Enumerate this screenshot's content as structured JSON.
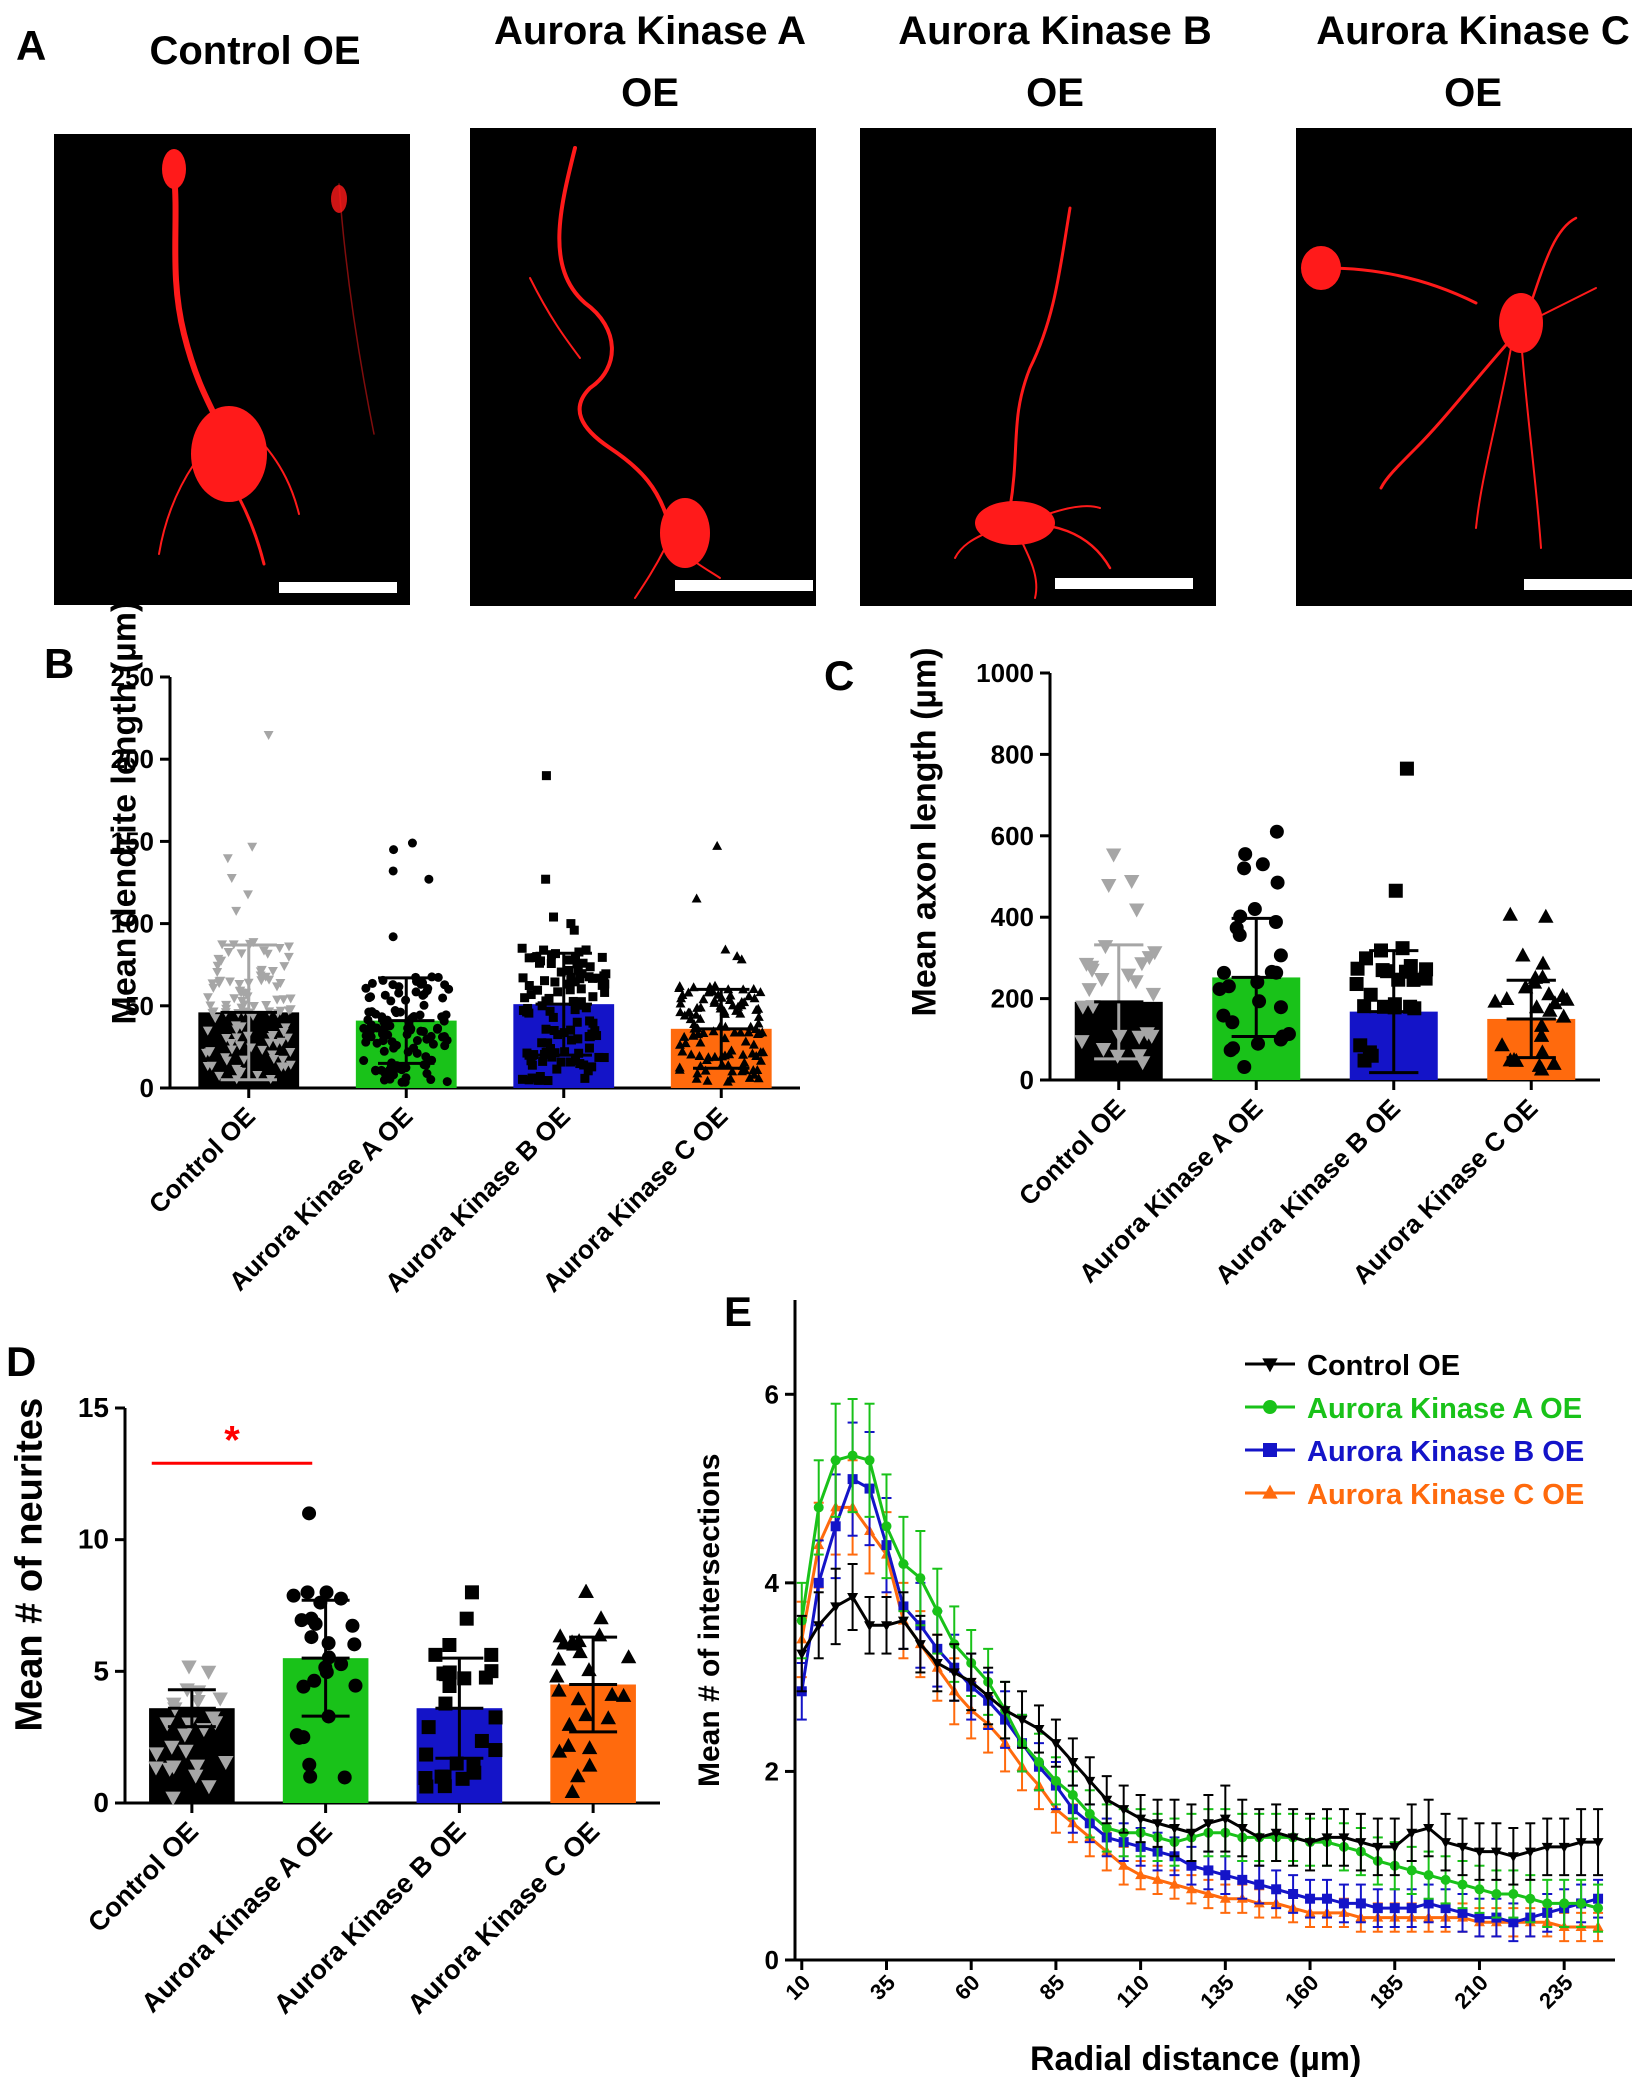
{
  "colors": {
    "control": "#000000",
    "control_points": "#a6a6a6",
    "aurora_a": "#19c219",
    "aurora_b": "#1414c8",
    "aurora_c": "#ff6a0d",
    "neuron": "#ff1a1a",
    "significance": "#ff0000"
  },
  "panel_a": {
    "letter": "A",
    "images": [
      {
        "title_line1": "Control OE",
        "title_line2": ""
      },
      {
        "title_line1": "Aurora Kinase A",
        "title_line2": "OE"
      },
      {
        "title_line1": "Aurora Kinase B",
        "title_line2": "OE"
      },
      {
        "title_line1": "Aurora Kinase C",
        "title_line2": "OE"
      }
    ]
  },
  "chart_data": [
    {
      "panel": "B",
      "type": "bar",
      "ylabel": "Mean dendrite length (µm)",
      "ylim": [
        0,
        250
      ],
      "yticks": [
        "0",
        "50",
        "100",
        "150",
        "200",
        "250"
      ],
      "categories": [
        "Control OE",
        "Aurora Kinase A OE",
        "Aurora Kinase B OE",
        "Aurora Kinase C OE"
      ],
      "values": [
        46,
        41,
        51,
        36
      ],
      "errors": [
        41,
        26,
        31,
        24
      ],
      "markers": [
        "triangle-down",
        "circle",
        "square",
        "triangle-up"
      ],
      "outliers": [
        [
          215,
          147,
          140,
          128,
          118,
          108
        ],
        [
          149,
          145,
          132,
          127,
          92
        ],
        [
          190,
          127,
          104,
          100,
          96
        ],
        [
          147,
          115,
          84,
          80,
          78
        ]
      ]
    },
    {
      "panel": "C",
      "type": "bar",
      "ylabel": "Mean axon length (µm)",
      "ylim": [
        0,
        1000
      ],
      "yticks": [
        "0",
        "200",
        "400",
        "600",
        "800",
        "1000"
      ],
      "categories": [
        "Control OE",
        "Aurora Kinase A OE",
        "Aurora Kinase B OE",
        "Aurora Kinase C OE"
      ],
      "values": [
        192,
        252,
        168,
        150
      ],
      "errors": [
        140,
        145,
        150,
        95
      ],
      "markers": [
        "triangle-down",
        "circle",
        "square",
        "triangle-up"
      ],
      "outliers": [
        [
          555,
          490,
          480,
          420,
          330
        ],
        [
          610,
          555,
          530,
          520,
          485,
          420
        ],
        [
          765,
          465,
          280,
          270
        ],
        [
          405,
          400,
          305,
          285,
          250
        ]
      ]
    },
    {
      "panel": "D",
      "type": "bar",
      "ylabel": "Mean # of neurites",
      "ylim": [
        0,
        15
      ],
      "yticks": [
        "0",
        "5",
        "10",
        "15"
      ],
      "categories": [
        "Control OE",
        "Aurora Kinase A OE",
        "Aurora Kinase B OE",
        "Aurora Kinase C OE"
      ],
      "values": [
        3.6,
        5.5,
        3.6,
        4.5
      ],
      "errors": [
        0.7,
        2.2,
        1.9,
        1.8
      ],
      "markers": [
        "triangle-down",
        "circle",
        "square",
        "triangle-up"
      ],
      "outliers": [
        [
          5.2,
          5.0,
          2.0
        ],
        [
          11.0,
          8.0,
          8.0,
          7.0,
          1.0
        ],
        [
          8.0,
          7.0,
          6.0,
          1.0,
          1.0
        ],
        [
          8.0,
          8.0,
          7.0,
          6.0,
          1.0
        ]
      ],
      "significance": {
        "from": 0,
        "to": 1,
        "label": "*",
        "y": 12.9
      }
    },
    {
      "panel": "E",
      "type": "line",
      "xlabel": "Radial distance (µm)",
      "ylabel": "Mean # of intersections",
      "xlim": [
        8,
        250
      ],
      "ylim": [
        0,
        7
      ],
      "xticks": [
        "10",
        "35",
        "60",
        "85",
        "110",
        "135",
        "160",
        "185",
        "210",
        "235"
      ],
      "yticks": [
        "0",
        "2",
        "4",
        "6"
      ],
      "x_start": 10,
      "x_step": 5,
      "series": [
        {
          "name": "Control OE",
          "marker": "triangle-down",
          "values": [
            3.25,
            3.55,
            3.75,
            3.85,
            3.55,
            3.55,
            3.6,
            3.35,
            3.15,
            3.05,
            2.95,
            2.8,
            2.65,
            2.55,
            2.45,
            2.3,
            2.1,
            1.9,
            1.7,
            1.6,
            1.5,
            1.45,
            1.4,
            1.35,
            1.45,
            1.5,
            1.4,
            1.3,
            1.35,
            1.3,
            1.25,
            1.3,
            1.3,
            1.25,
            1.2,
            1.2,
            1.35,
            1.4,
            1.25,
            1.2,
            1.15,
            1.15,
            1.1,
            1.15,
            1.2,
            1.2,
            1.25,
            1.25
          ],
          "errors": [
            0.4,
            0.35,
            0.4,
            0.35,
            0.3,
            0.3,
            0.3,
            0.3,
            0.3,
            0.3,
            0.3,
            0.3,
            0.3,
            0.3,
            0.25,
            0.25,
            0.25,
            0.25,
            0.25,
            0.25,
            0.25,
            0.25,
            0.3,
            0.3,
            0.3,
            0.35,
            0.3,
            0.3,
            0.3,
            0.3,
            0.3,
            0.3,
            0.3,
            0.3,
            0.3,
            0.3,
            0.3,
            0.3,
            0.3,
            0.3,
            0.3,
            0.3,
            0.3,
            0.3,
            0.3,
            0.3,
            0.35,
            0.35
          ]
        },
        {
          "name": "Aurora Kinase A OE",
          "marker": "circle",
          "values": [
            3.6,
            4.8,
            5.3,
            5.35,
            5.3,
            4.6,
            4.2,
            4.05,
            3.7,
            3.35,
            3.15,
            2.95,
            2.65,
            2.3,
            2.1,
            1.9,
            1.75,
            1.55,
            1.4,
            1.35,
            1.35,
            1.3,
            1.25,
            1.3,
            1.35,
            1.35,
            1.3,
            1.3,
            1.3,
            1.3,
            1.25,
            1.25,
            1.2,
            1.15,
            1.05,
            1.0,
            0.95,
            0.9,
            0.85,
            0.8,
            0.75,
            0.7,
            0.7,
            0.65,
            0.6,
            0.6,
            0.6,
            0.55
          ],
          "errors": [
            0.4,
            0.5,
            0.6,
            0.6,
            0.6,
            0.55,
            0.5,
            0.5,
            0.45,
            0.4,
            0.35,
            0.35,
            0.3,
            0.3,
            0.3,
            0.25,
            0.25,
            0.25,
            0.25,
            0.25,
            0.25,
            0.25,
            0.25,
            0.25,
            0.25,
            0.25,
            0.25,
            0.25,
            0.25,
            0.25,
            0.25,
            0.25,
            0.25,
            0.25,
            0.25,
            0.25,
            0.25,
            0.25,
            0.25,
            0.25,
            0.25,
            0.25,
            0.25,
            0.25,
            0.25,
            0.25,
            0.25,
            0.25
          ]
        },
        {
          "name": "Aurora Kinase B OE",
          "marker": "square",
          "values": [
            2.85,
            4.0,
            4.6,
            5.1,
            5.0,
            4.4,
            3.75,
            3.55,
            3.3,
            3.1,
            2.9,
            2.75,
            2.55,
            2.3,
            2.05,
            1.85,
            1.6,
            1.45,
            1.3,
            1.25,
            1.2,
            1.15,
            1.1,
            1.0,
            0.95,
            0.9,
            0.85,
            0.8,
            0.75,
            0.7,
            0.65,
            0.65,
            0.6,
            0.6,
            0.55,
            0.55,
            0.55,
            0.6,
            0.55,
            0.5,
            0.45,
            0.45,
            0.4,
            0.45,
            0.5,
            0.55,
            0.6,
            0.65
          ],
          "errors": [
            0.3,
            0.45,
            0.55,
            0.6,
            0.6,
            0.5,
            0.45,
            0.45,
            0.4,
            0.35,
            0.35,
            0.3,
            0.3,
            0.3,
            0.25,
            0.25,
            0.25,
            0.2,
            0.2,
            0.2,
            0.2,
            0.2,
            0.2,
            0.2,
            0.2,
            0.2,
            0.2,
            0.2,
            0.2,
            0.2,
            0.2,
            0.2,
            0.2,
            0.2,
            0.2,
            0.2,
            0.2,
            0.2,
            0.2,
            0.2,
            0.2,
            0.2,
            0.2,
            0.2,
            0.2,
            0.2,
            0.2,
            0.2
          ]
        },
        {
          "name": "Aurora Kinase C OE",
          "marker": "triangle-up",
          "values": [
            3.4,
            4.4,
            4.8,
            4.8,
            4.55,
            4.3,
            3.6,
            3.35,
            3.1,
            2.85,
            2.65,
            2.5,
            2.3,
            2.05,
            1.85,
            1.6,
            1.45,
            1.3,
            1.15,
            1.0,
            0.9,
            0.85,
            0.8,
            0.75,
            0.7,
            0.65,
            0.65,
            0.6,
            0.6,
            0.55,
            0.5,
            0.5,
            0.5,
            0.45,
            0.45,
            0.45,
            0.45,
            0.45,
            0.45,
            0.45,
            0.4,
            0.4,
            0.4,
            0.4,
            0.4,
            0.35,
            0.35,
            0.35
          ],
          "errors": [
            0.4,
            0.45,
            0.5,
            0.5,
            0.45,
            0.45,
            0.4,
            0.35,
            0.35,
            0.35,
            0.3,
            0.3,
            0.3,
            0.25,
            0.25,
            0.25,
            0.2,
            0.2,
            0.2,
            0.2,
            0.15,
            0.15,
            0.15,
            0.15,
            0.15,
            0.15,
            0.15,
            0.15,
            0.15,
            0.15,
            0.15,
            0.15,
            0.15,
            0.15,
            0.15,
            0.15,
            0.15,
            0.15,
            0.15,
            0.15,
            0.15,
            0.15,
            0.15,
            0.15,
            0.15,
            0.15,
            0.15,
            0.15
          ]
        }
      ]
    }
  ],
  "panel_letters": {
    "b": "B",
    "c": "C",
    "d": "D",
    "e": "E"
  }
}
